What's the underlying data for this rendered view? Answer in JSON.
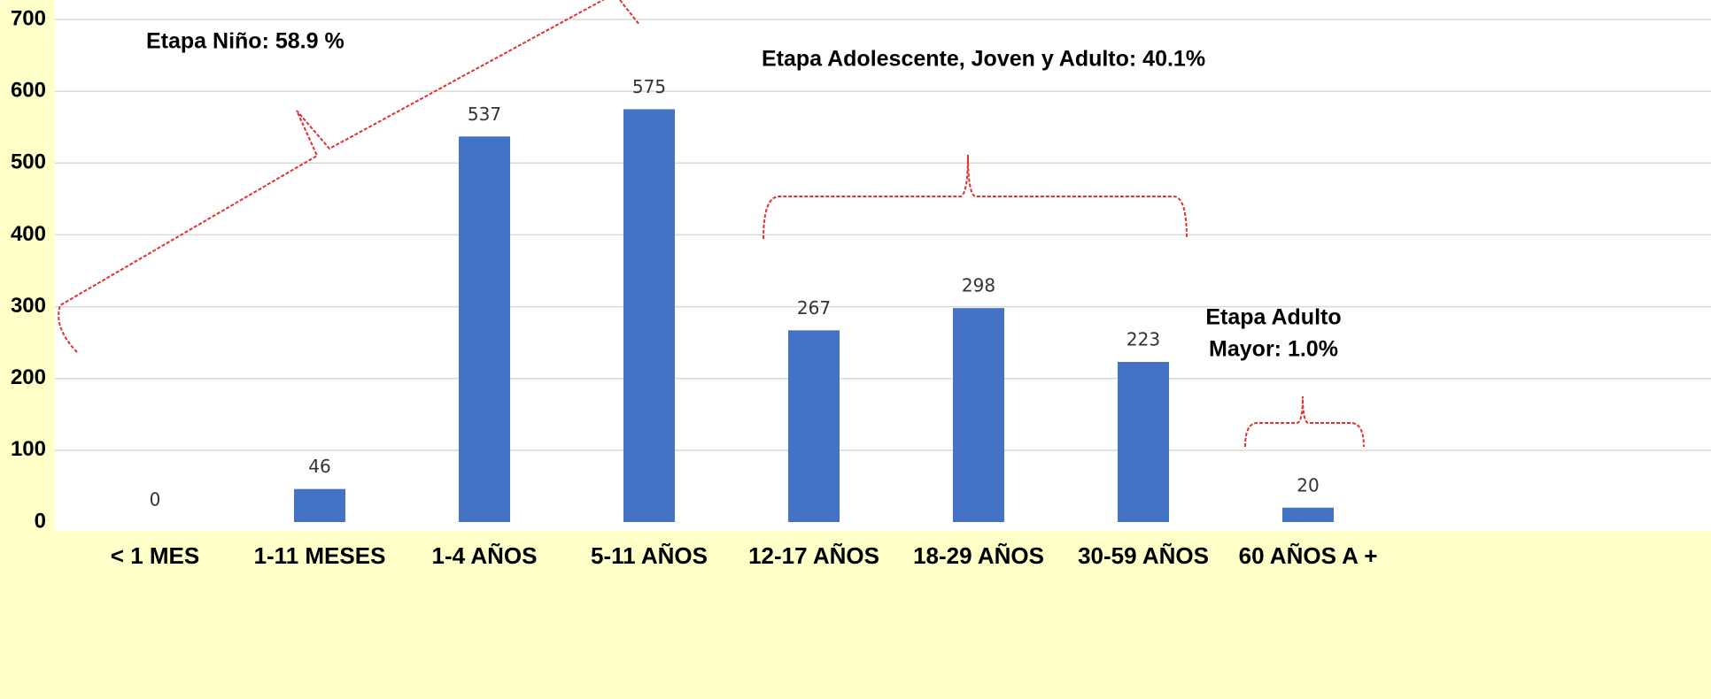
{
  "chart_data": {
    "type": "bar",
    "categories": [
      "< 1 MES",
      "1-11 MESES",
      "1-4 AÑOS",
      "5-11 AÑOS",
      "12-17 AÑOS",
      "18-29 AÑOS",
      "30-59 AÑOS",
      "60 AÑOS A +"
    ],
    "values": [
      0,
      46,
      537,
      575,
      267,
      298,
      223,
      20
    ],
    "color": "#4472c4",
    "ylim": [
      0,
      700
    ],
    "yticks": [
      0,
      100,
      200,
      300,
      400,
      500,
      600,
      700
    ],
    "grid": true,
    "annotations": [
      {
        "lines": [
          "Etapa Niño: 58.9 %"
        ]
      },
      {
        "lines": [
          "Etapa Adolescente, Joven y Adulto: 40.1%"
        ]
      },
      {
        "lines": [
          "Etapa Adulto",
          "Mayor:  1.0%"
        ]
      }
    ]
  }
}
